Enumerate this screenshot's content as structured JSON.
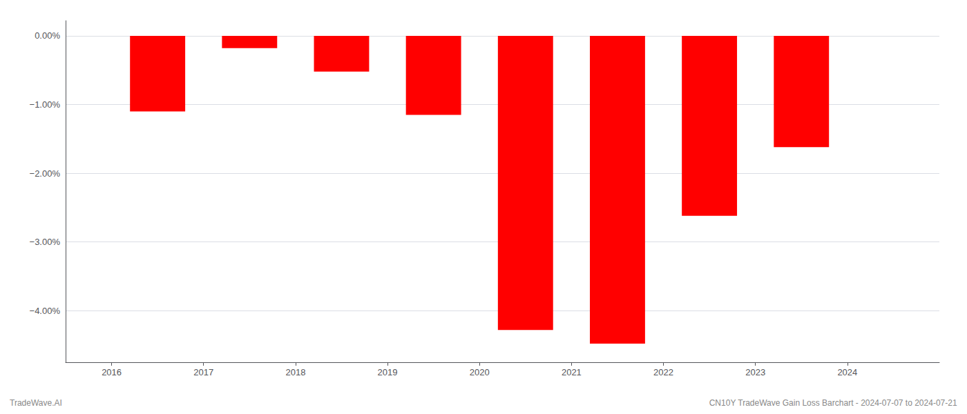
{
  "chart_data": {
    "type": "bar",
    "x": [
      2016.5,
      2017.5,
      2018.5,
      2019.5,
      2020.5,
      2021.5,
      2022.5,
      2023.5
    ],
    "values": [
      -1.1,
      -0.18,
      -0.52,
      -1.15,
      -4.28,
      -4.48,
      -2.62,
      -1.62
    ],
    "color": "#ff0000",
    "xlim": [
      2015.5,
      2025.0
    ],
    "xticks": [
      2016,
      2017,
      2018,
      2019,
      2020,
      2021,
      2022,
      2023,
      2024
    ],
    "ylim": [
      -4.75,
      0.22
    ],
    "yticks": [
      {
        "value": 0.0,
        "label": "0.00%"
      },
      {
        "value": -1.0,
        "label": "−1.00%"
      },
      {
        "value": -2.0,
        "label": "−2.00%"
      },
      {
        "value": -3.0,
        "label": "−3.00%"
      },
      {
        "value": -4.0,
        "label": "−4.00%"
      }
    ],
    "grid": true,
    "annotations": [
      "TradeWave.AI",
      "CN10Y TradeWave Gain Loss Barchart - 2024-07-07 to 2024-07-21"
    ]
  }
}
